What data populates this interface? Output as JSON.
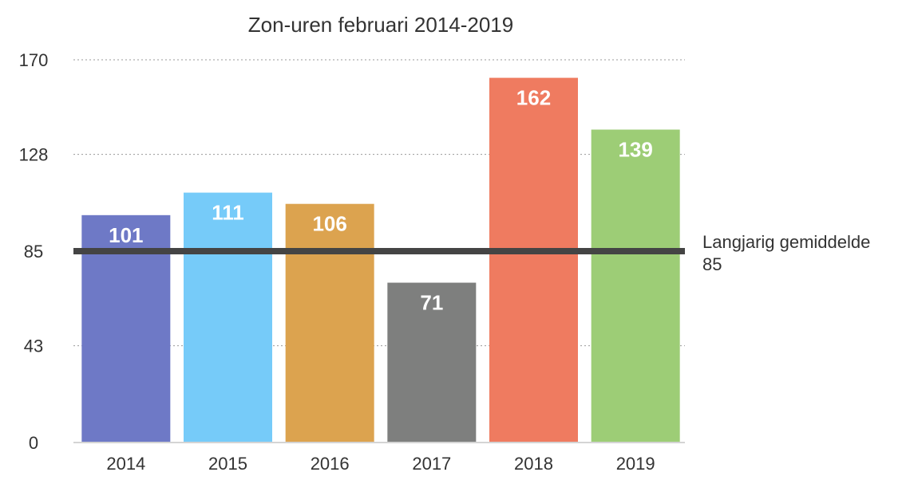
{
  "chart_data": {
    "type": "bar",
    "title": "Zon-uren februari 2014-2019",
    "xlabel": "",
    "ylabel": "",
    "categories": [
      "2014",
      "2015",
      "2016",
      "2017",
      "2018",
      "2019"
    ],
    "values": [
      101,
      111,
      106,
      71,
      162,
      139
    ],
    "data_labels": [
      "101",
      "111",
      "106",
      "71",
      "162",
      "139"
    ],
    "colors": [
      "#6e79c6",
      "#76cbf9",
      "#dca34f",
      "#7e7f7e",
      "#ef7b60",
      "#9dcd76"
    ],
    "ylim": [
      0,
      170
    ],
    "yticks": [
      0,
      43,
      85,
      128,
      170
    ],
    "ytick_labels": [
      "0",
      "43",
      "85",
      "128",
      "170"
    ],
    "grid": "horizontal dotted",
    "reference_line": {
      "value": 85,
      "label": "Langjarig gemiddelde",
      "value_label": "85",
      "color": "#444444"
    }
  }
}
